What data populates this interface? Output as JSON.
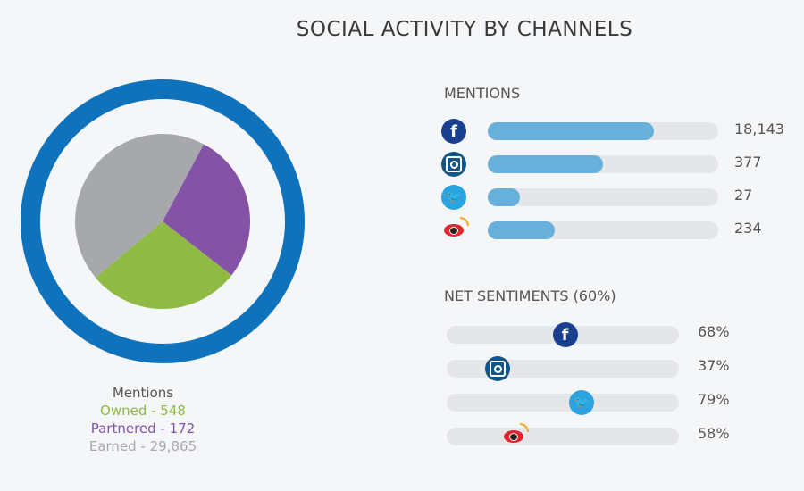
{
  "title": "SOCIAL ACTIVITY BY CHANNELS",
  "chart_data": [
    {
      "type": "pie",
      "title": "Mentions",
      "categories": [
        "Owned",
        "Partnered",
        "Earned"
      ],
      "values": [
        548,
        172,
        29865
      ],
      "colors": [
        "#8fba44",
        "#8553a6",
        "#a7a8ab"
      ],
      "ring_color": "#0e72bc",
      "labels": [
        "Owned - 548",
        "Partnered - 172",
        "Earned - 29,865"
      ]
    },
    {
      "type": "bar",
      "title": "MENTIONS",
      "categories": [
        "facebook",
        "instagram",
        "twitter",
        "weibo"
      ],
      "values": [
        18143,
        377,
        27,
        234
      ],
      "labels": [
        "18,143",
        "377",
        "27",
        "234"
      ],
      "fill_fraction": [
        0.72,
        0.5,
        0.14,
        0.29
      ],
      "bar_color": "#67b0dc"
    },
    {
      "type": "bar",
      "title": "NET SENTIMENTS (60%)",
      "categories": [
        "facebook",
        "instagram",
        "twitter",
        "weibo"
      ],
      "values": [
        68,
        37,
        79,
        58
      ],
      "labels": [
        "68%",
        "37%",
        "79%",
        "58%"
      ],
      "marker_fraction": [
        0.51,
        0.22,
        0.58,
        0.29
      ]
    }
  ],
  "icons": {
    "facebook": {
      "name": "facebook-icon",
      "color": "#1b3f8f"
    },
    "instagram": {
      "name": "instagram-icon",
      "color": "#125688"
    },
    "twitter": {
      "name": "twitter-icon",
      "color": "#2aa3e0"
    },
    "weibo": {
      "name": "weibo-icon",
      "color": "#e3262d"
    }
  }
}
